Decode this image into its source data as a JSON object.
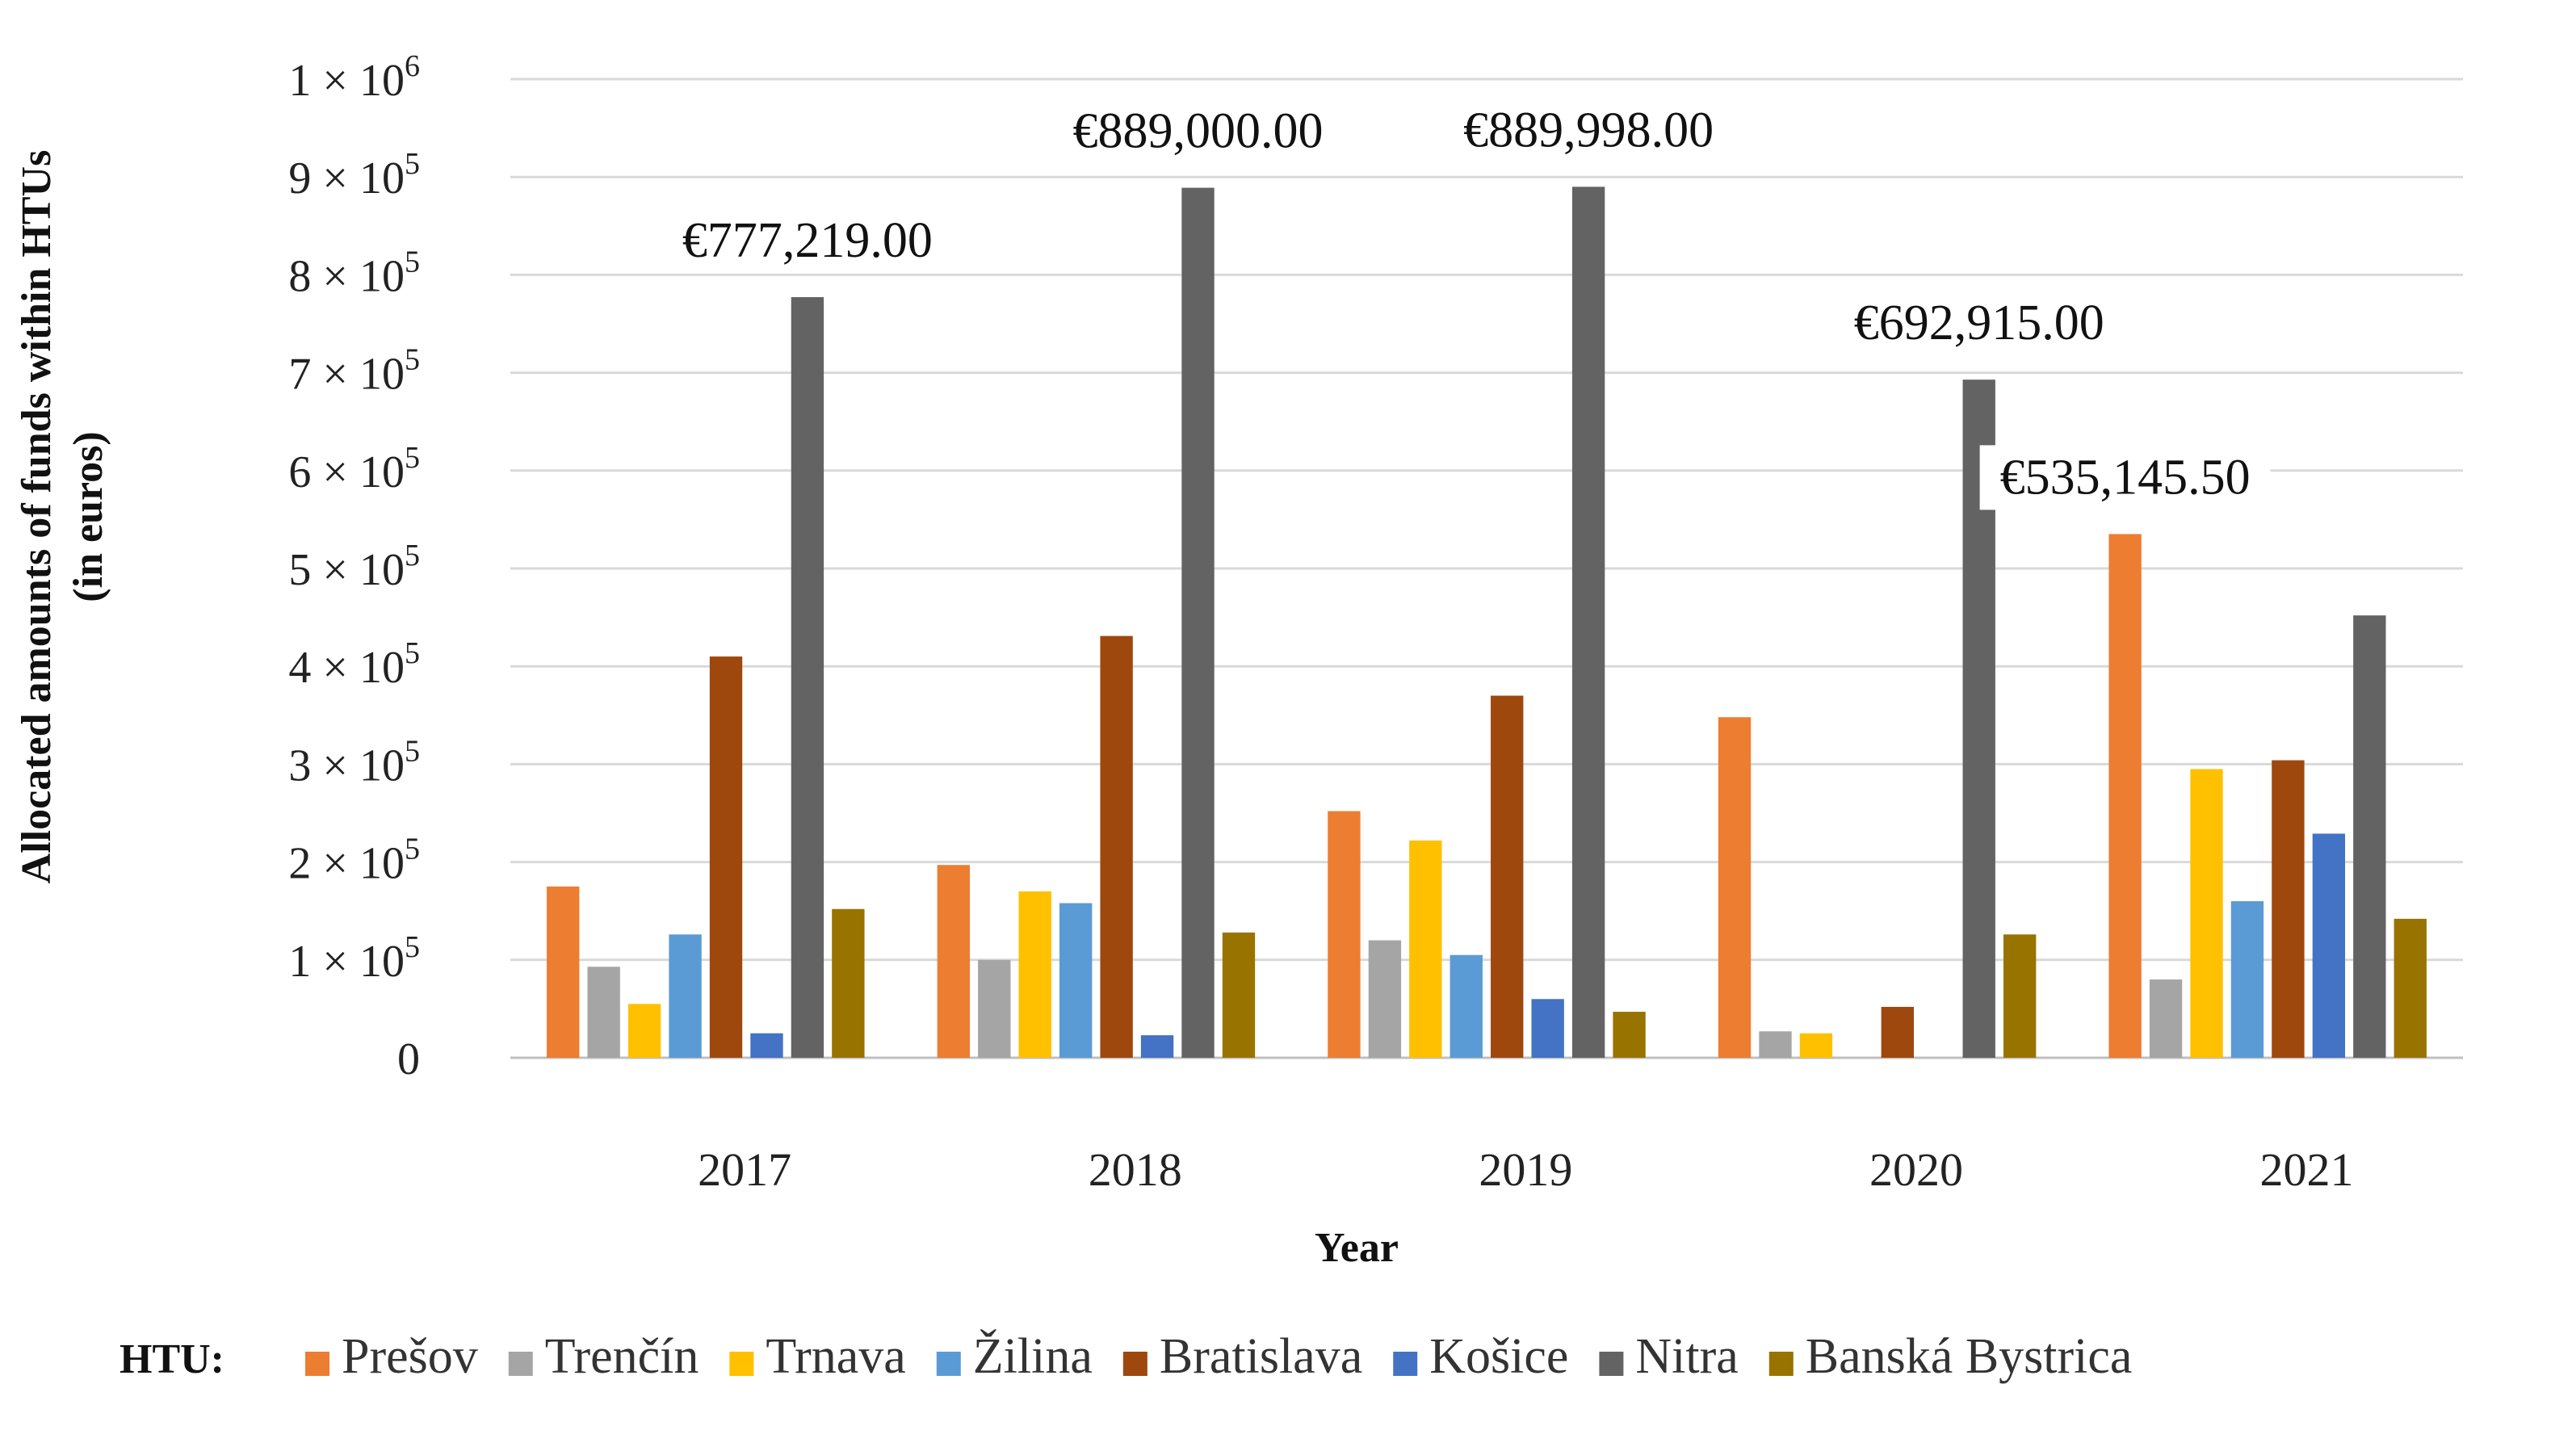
{
  "chart_data": {
    "type": "bar",
    "title": "",
    "xlabel": "Year",
    "ylabel": "Allocated amounts of funds within HTUs",
    "ylabel_sub": "(in euros)",
    "ylim": [
      0,
      1000000
    ],
    "grid": true,
    "categories": [
      "2017",
      "2018",
      "2019",
      "2020",
      "2021"
    ],
    "y_ticks": [
      {
        "value": 0,
        "base": "0",
        "exp": ""
      },
      {
        "value": 100000,
        "base": "1 × 10",
        "exp": "5"
      },
      {
        "value": 200000,
        "base": "2 × 10",
        "exp": "5"
      },
      {
        "value": 300000,
        "base": "3 × 10",
        "exp": "5"
      },
      {
        "value": 400000,
        "base": "4 × 10",
        "exp": "5"
      },
      {
        "value": 500000,
        "base": "5 × 10",
        "exp": "5"
      },
      {
        "value": 600000,
        "base": "6 × 10",
        "exp": "5"
      },
      {
        "value": 700000,
        "base": "7 × 10",
        "exp": "5"
      },
      {
        "value": 800000,
        "base": "8 × 10",
        "exp": "5"
      },
      {
        "value": 900000,
        "base": "9 × 10",
        "exp": "5"
      },
      {
        "value": 1000000,
        "base": "1 × 10",
        "exp": "6"
      }
    ],
    "legend_title": "HTU:",
    "legend_position": "bottom",
    "series": [
      {
        "name": "Prešov",
        "color": "#ED7D31",
        "values": [
          175000,
          197000,
          252000,
          348000,
          535145.5
        ]
      },
      {
        "name": "Trenčín",
        "color": "#A5A5A5",
        "values": [
          93000,
          100000,
          120000,
          27000,
          80000
        ]
      },
      {
        "name": "Trnava",
        "color": "#FFC000",
        "values": [
          55000,
          170000,
          222000,
          25000,
          295000
        ]
      },
      {
        "name": "Žilina",
        "color": "#5B9BD5",
        "values": [
          126000,
          158000,
          105000,
          0,
          160000
        ]
      },
      {
        "name": "Bratislava",
        "color": "#9E480E",
        "values": [
          410000,
          431000,
          370000,
          52000,
          304000
        ]
      },
      {
        "name": "Košice",
        "color": "#4472C4",
        "values": [
          25000,
          23000,
          60000,
          0,
          229000
        ]
      },
      {
        "name": "Nitra",
        "color": "#636363",
        "values": [
          777219,
          889000,
          889998,
          692915,
          452000
        ]
      },
      {
        "name": "Banská Bystrica",
        "color": "#997300",
        "values": [
          152000,
          128000,
          47000,
          126000,
          142000
        ]
      }
    ],
    "annotations": [
      {
        "text": "€777,219.00",
        "category": "2017",
        "series": "Nitra"
      },
      {
        "text": "€889,000.00",
        "category": "2018",
        "series": "Nitra"
      },
      {
        "text": "€889,998.00",
        "category": "2019",
        "series": "Nitra"
      },
      {
        "text": "€692,915.00",
        "category": "2020",
        "series": "Nitra"
      },
      {
        "text": "€535,145.50",
        "category": "2021",
        "series": "Prešov"
      }
    ]
  }
}
